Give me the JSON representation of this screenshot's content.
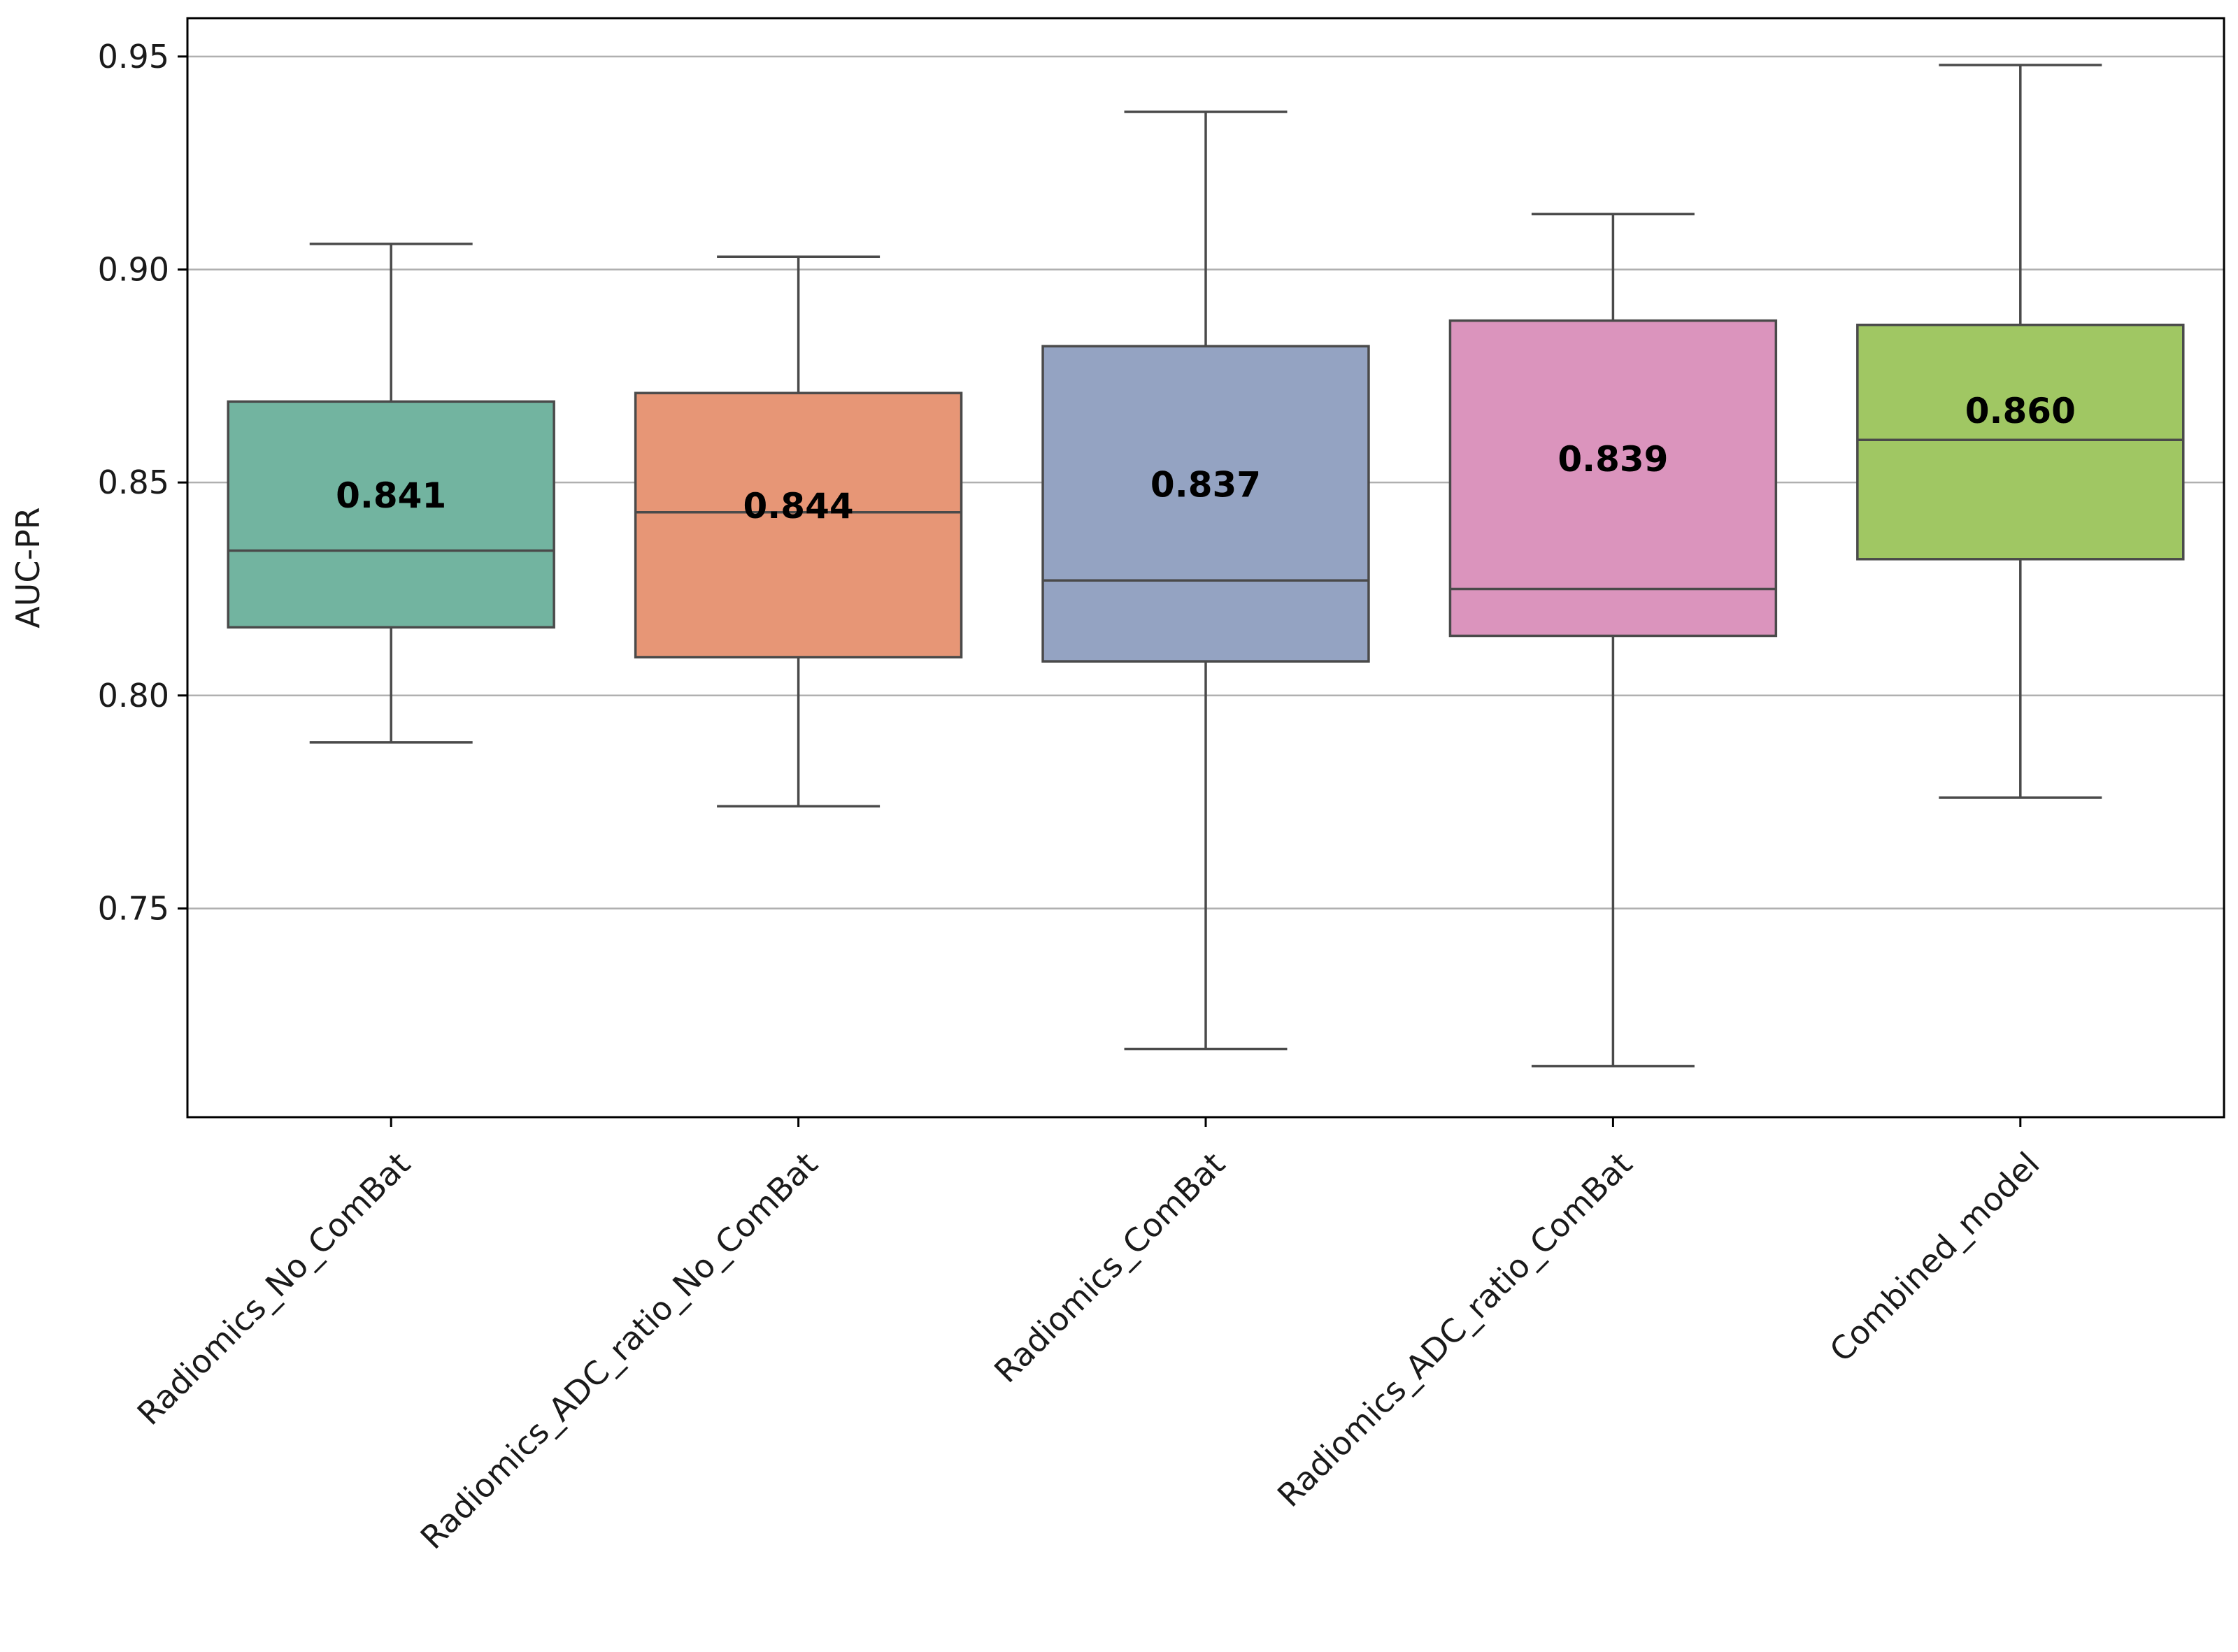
{
  "chart_data": {
    "type": "box",
    "title": "",
    "xlabel": "",
    "ylabel": "AUC-PR",
    "ylim": [
      0.701,
      0.959
    ],
    "yticks": [
      0.75,
      0.8,
      0.85,
      0.9,
      0.95
    ],
    "ytick_labels": [
      "0.75",
      "0.80",
      "0.85",
      "0.90",
      "0.95"
    ],
    "grid": "horizontal",
    "categories": [
      "Radiomics_No_ComBat",
      "Radiomics_ADC_ratio_No_ComBat",
      "Radiomics_ComBat",
      "Radiomics_ADC_ratio_ComBat",
      "Combined_model"
    ],
    "boxes": [
      {
        "name": "Radiomics_No_ComBat",
        "whisker_low": 0.789,
        "q1": 0.816,
        "median": 0.834,
        "q3": 0.869,
        "whisker_high": 0.906,
        "mean_label": "0.841",
        "color": "#72b4a0"
      },
      {
        "name": "Radiomics_ADC_ratio_No_ComBat",
        "whisker_low": 0.774,
        "q1": 0.809,
        "median": 0.843,
        "q3": 0.871,
        "whisker_high": 0.903,
        "mean_label": "0.844",
        "color": "#e79676"
      },
      {
        "name": "Radiomics_ComBat",
        "whisker_low": 0.717,
        "q1": 0.808,
        "median": 0.827,
        "q3": 0.882,
        "whisker_high": 0.937,
        "mean_label": "0.837",
        "color": "#94a3c2"
      },
      {
        "name": "Radiomics_ADC_ratio_ComBat",
        "whisker_low": 0.713,
        "q1": 0.814,
        "median": 0.825,
        "q3": 0.888,
        "whisker_high": 0.913,
        "mean_label": "0.839",
        "color": "#db94bd"
      },
      {
        "name": "Combined_model",
        "whisker_low": 0.776,
        "q1": 0.832,
        "median": 0.86,
        "q3": 0.887,
        "whisker_high": 0.948,
        "mean_label": "0.860",
        "color": "#a0c763"
      }
    ]
  }
}
